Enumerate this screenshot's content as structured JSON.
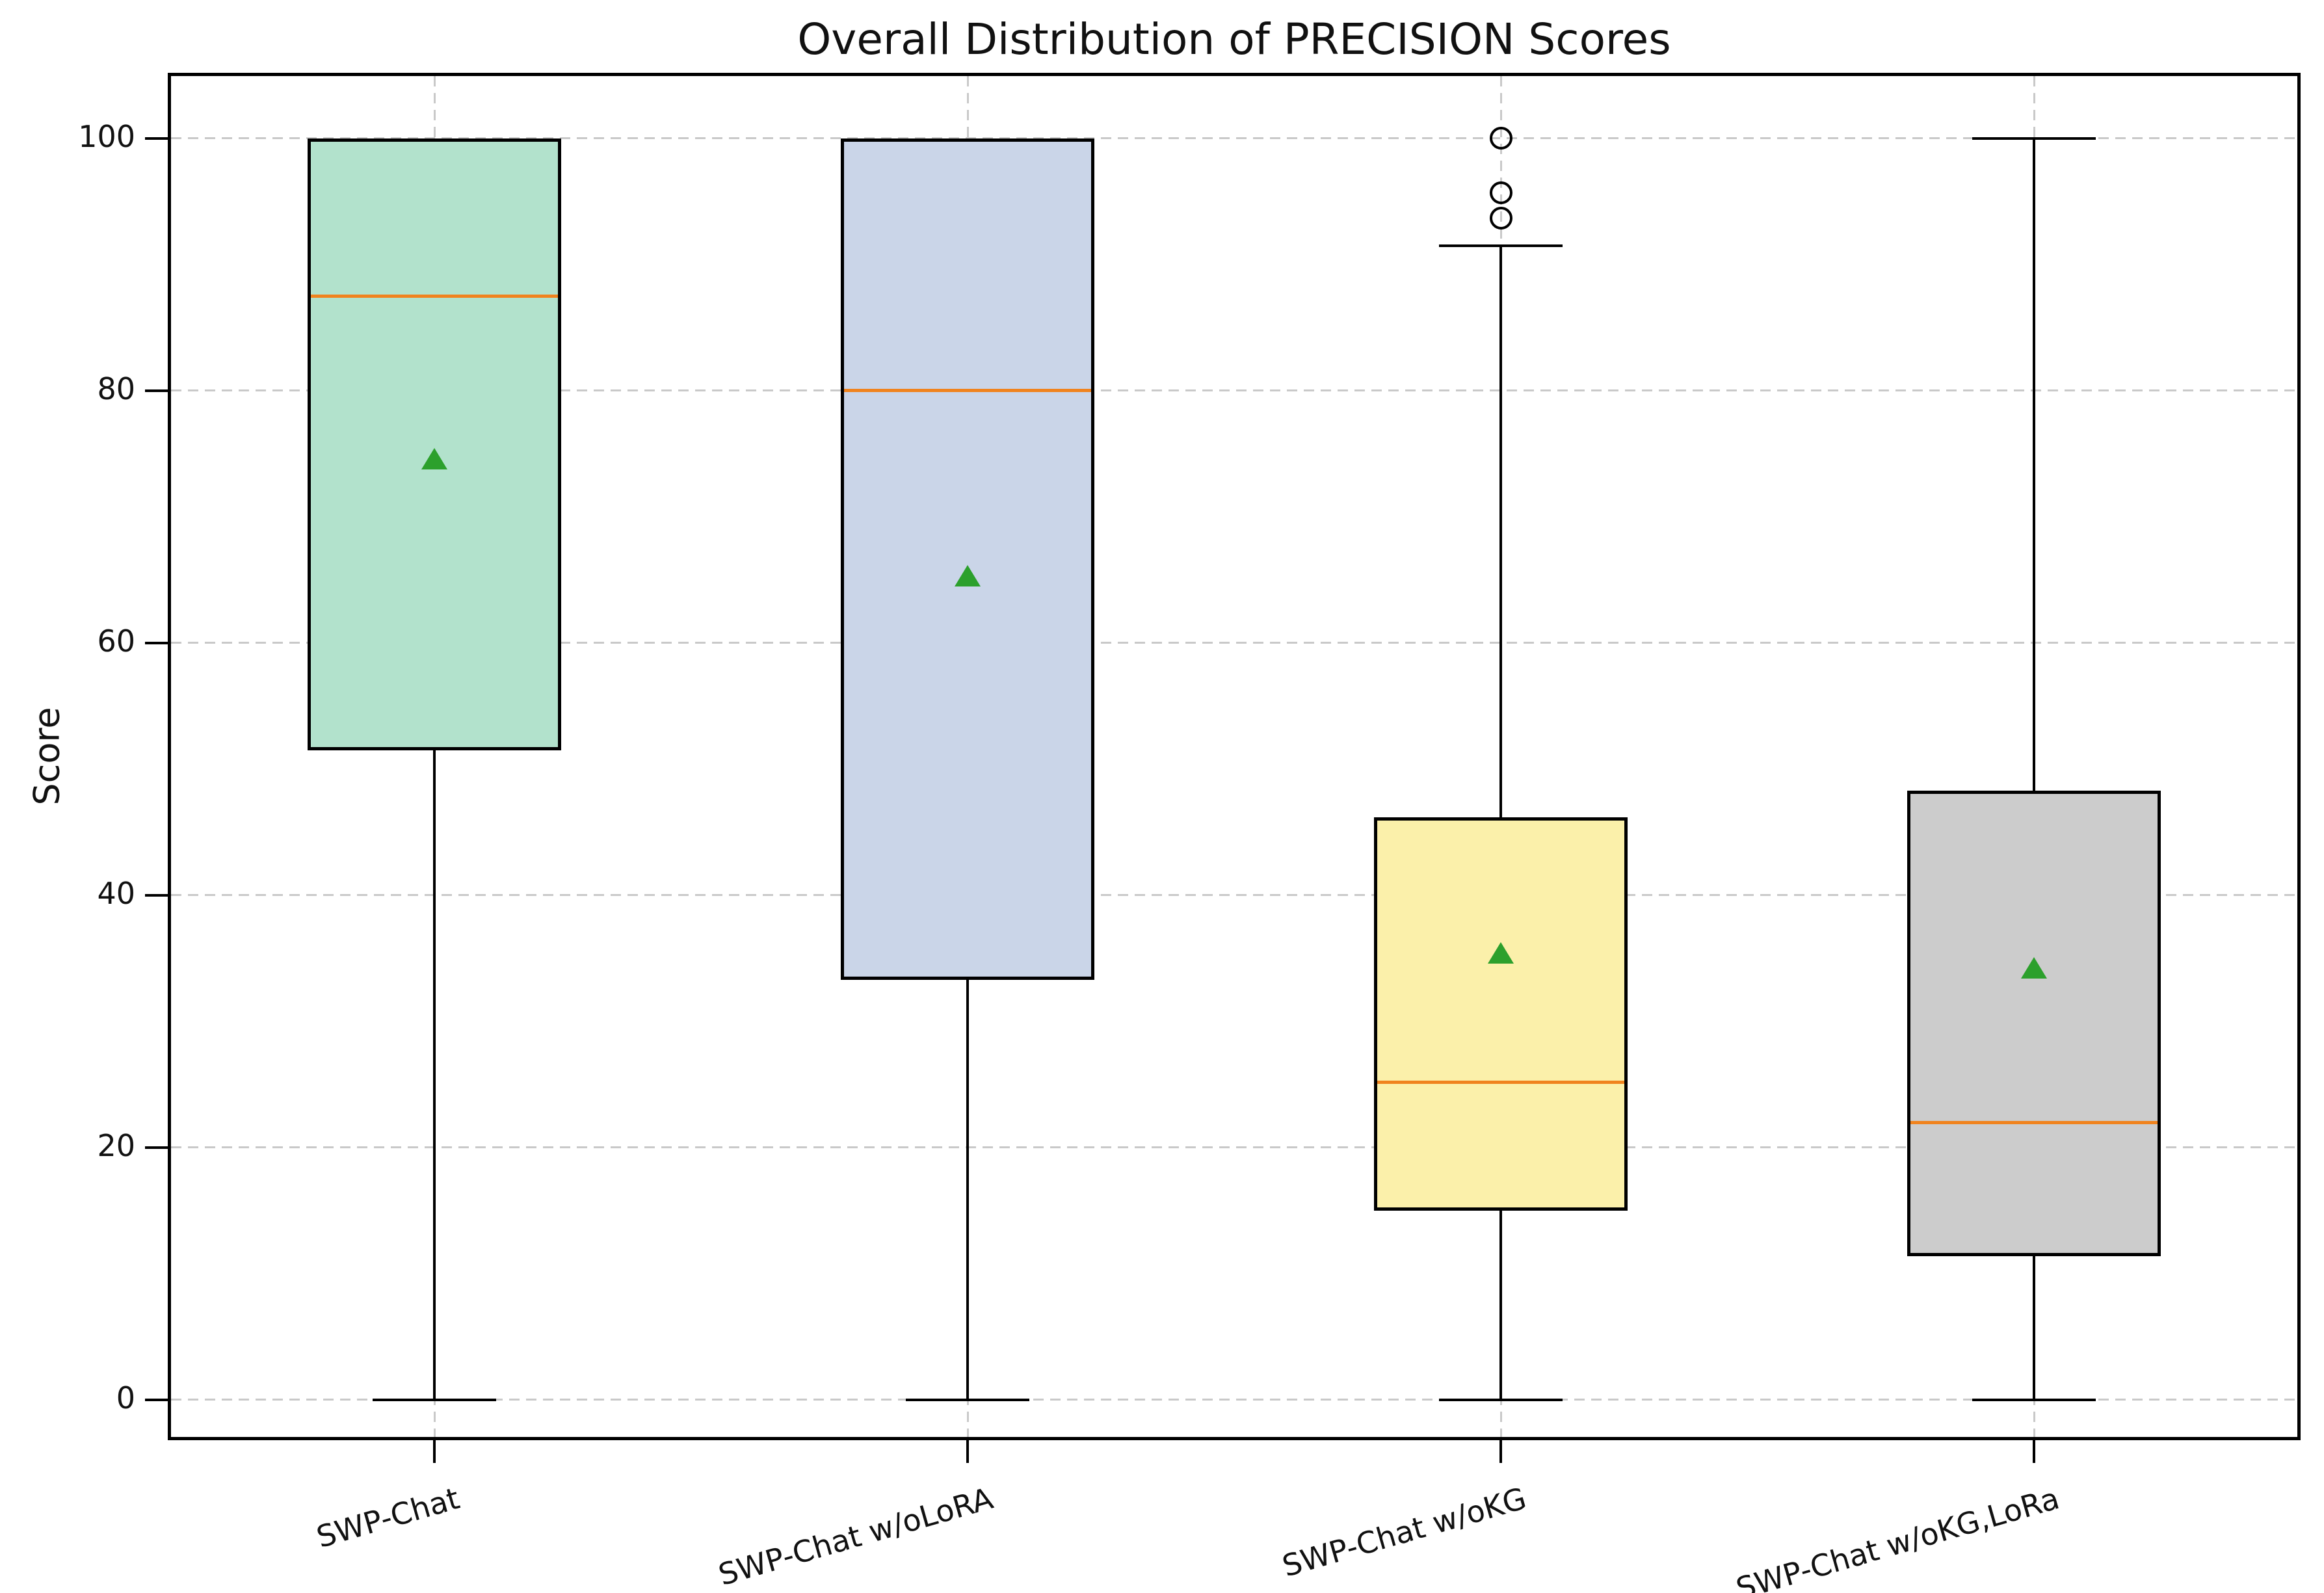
{
  "figure": {
    "title": "Overall Distribution of PRECISION Scores"
  },
  "axes": {
    "ylabel": "Score"
  },
  "chart_data": {
    "type": "box",
    "title": "Overall Distribution of PRECISION Scores",
    "xlabel": "",
    "ylabel": "Score",
    "ylim": [
      -3.2,
      105.2
    ],
    "yticks": [
      0,
      20,
      40,
      60,
      80,
      100
    ],
    "grid": true,
    "legend": "none",
    "categories": [
      "SWP-Chat",
      "SWP-Chat w/oLoRA",
      "SWP-Chat w/oKG",
      "SWP-Chat w/oKG,LoRa"
    ],
    "series": [
      {
        "label": "SWP-Chat",
        "whisker_low": 0,
        "q1": 51.5,
        "median": 87.5,
        "q3": 100,
        "whisker_high": 100,
        "mean": 74.6,
        "outliers": [],
        "fill_color": "#b2e2cc"
      },
      {
        "label": "SWP-Chat w/oLoRA",
        "whisker_low": 0,
        "q1": 33.3,
        "median": 80,
        "q3": 100,
        "whisker_high": 100,
        "mean": 65.3,
        "outliers": [],
        "fill_color": "#cad5e8"
      },
      {
        "label": "SWP-Chat w/oKG",
        "whisker_low": 0,
        "q1": 15,
        "median": 25.2,
        "q3": 46.2,
        "whisker_high": 91.5,
        "mean": 35.4,
        "outliers": [
          93.7,
          95.7,
          100
        ],
        "fill_color": "#fbf0aa"
      },
      {
        "label": "SWP-Chat w/oKG,LoRa",
        "whisker_low": 0,
        "q1": 11.4,
        "median": 22,
        "q3": 48.3,
        "whisker_high": 100,
        "mean": 34.2,
        "outliers": [],
        "fill_color": "#cccccc"
      }
    ],
    "style": {
      "median_color": "#f0831e",
      "mean_marker_color": "#2ca02c",
      "mean_marker": "triangle-up",
      "edge_color": "#000000",
      "grid_color": "#c9c9c9",
      "background_color": "#ffffff"
    }
  }
}
